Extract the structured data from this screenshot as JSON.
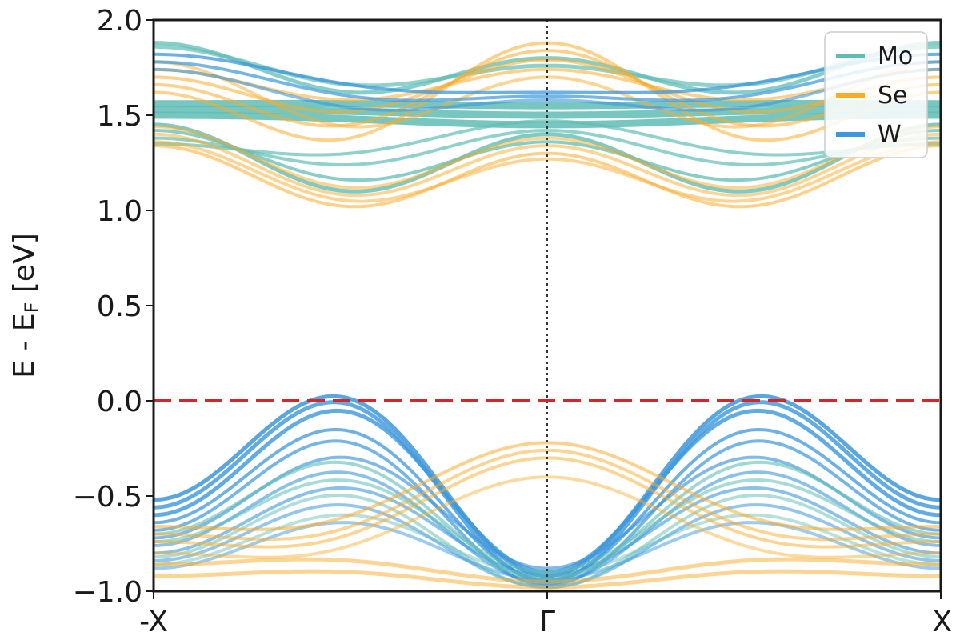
{
  "chart_data": {
    "type": "line",
    "title": "",
    "xlabel": "",
    "ylabel_parts": {
      "main": "E - E",
      "sub": "F",
      "unit": " [eV]"
    },
    "ylim": [
      -1.0,
      2.0
    ],
    "yticks": [
      -1.0,
      -0.5,
      0.0,
      0.5,
      1.0,
      1.5,
      2.0
    ],
    "ytick_labels": [
      "−1.0",
      "−0.5",
      "0.0",
      "0.5",
      "1.0",
      "1.5",
      "2.0"
    ],
    "xlim": [
      -1,
      1
    ],
    "xticks": [
      -1,
      0,
      1
    ],
    "xtick_labels": [
      "-X",
      "Γ",
      "X"
    ],
    "fermi_level": 0.0,
    "gamma_line_x": 0,
    "legend": {
      "placement": "top-right",
      "entries": [
        {
          "name": "Mo",
          "color": "#5fbdb5"
        },
        {
          "name": "Se",
          "color": "#f9ac2b"
        },
        {
          "name": "W",
          "color": "#3c97dc"
        }
      ]
    },
    "colors": {
      "fermi": "#d62728",
      "gamma_line": "#333333",
      "frame": "#1a1a1a"
    },
    "bands": {
      "conduction": [
        {
          "series": "Mo",
          "edge": 1.5,
          "gamma": 1.45,
          "valley": 1.48,
          "width": 9,
          "alpha": 0.85
        },
        {
          "series": "Mo",
          "edge": 1.53,
          "gamma": 1.5,
          "valley": 1.52,
          "width": 9,
          "alpha": 0.85
        },
        {
          "series": "Mo",
          "edge": 1.56,
          "gamma": 1.55,
          "valley": 1.56,
          "width": 9,
          "alpha": 0.85
        },
        {
          "series": "Mo",
          "edge": 1.45,
          "gamma": 1.4,
          "valley": 1.1,
          "width": 5,
          "alpha": 0.8
        },
        {
          "series": "Mo",
          "edge": 1.42,
          "gamma": 1.36,
          "valley": 1.16,
          "width": 4,
          "alpha": 0.75
        },
        {
          "series": "Mo",
          "edge": 1.38,
          "gamma": 1.42,
          "valley": 1.24,
          "width": 4,
          "alpha": 0.7
        },
        {
          "series": "Mo",
          "edge": 1.35,
          "gamma": 1.47,
          "valley": 1.3,
          "width": 4,
          "alpha": 0.7
        },
        {
          "series": "Mo",
          "edge": 1.88,
          "gamma": 1.8,
          "valley": 1.62,
          "width": 5,
          "alpha": 0.75
        },
        {
          "series": "Mo",
          "edge": 1.86,
          "gamma": 1.76,
          "valley": 1.66,
          "width": 5,
          "alpha": 0.7
        },
        {
          "series": "Se",
          "edge": 1.34,
          "gamma": 1.3,
          "valley": 1.02,
          "width": 4,
          "alpha": 0.55
        },
        {
          "series": "Se",
          "edge": 1.36,
          "gamma": 1.27,
          "valley": 1.05,
          "width": 4,
          "alpha": 0.5
        },
        {
          "series": "Se",
          "edge": 1.4,
          "gamma": 1.34,
          "valley": 1.08,
          "width": 4,
          "alpha": 0.5
        },
        {
          "series": "Se",
          "edge": 1.44,
          "gamma": 1.38,
          "valley": 1.12,
          "width": 4,
          "alpha": 0.5
        },
        {
          "series": "Se",
          "edge": 1.62,
          "gamma": 1.88,
          "valley": 1.38,
          "width": 4,
          "alpha": 0.55
        },
        {
          "series": "Se",
          "edge": 1.66,
          "gamma": 1.84,
          "valley": 1.45,
          "width": 4,
          "alpha": 0.55
        },
        {
          "series": "Se",
          "edge": 1.7,
          "gamma": 1.79,
          "valley": 1.52,
          "width": 4,
          "alpha": 0.55
        },
        {
          "series": "Se",
          "edge": 1.74,
          "gamma": 1.74,
          "valley": 1.58,
          "width": 4,
          "alpha": 0.55
        },
        {
          "series": "Se",
          "edge": 1.78,
          "gamma": 1.7,
          "valley": 1.44,
          "width": 4,
          "alpha": 0.5
        },
        {
          "series": "W",
          "edge": 1.82,
          "gamma": 1.62,
          "valley": 1.66,
          "width": 4,
          "alpha": 0.75
        },
        {
          "series": "W",
          "edge": 1.78,
          "gamma": 1.6,
          "valley": 1.6,
          "width": 4,
          "alpha": 0.7
        },
        {
          "series": "W",
          "edge": 1.74,
          "gamma": 1.58,
          "valley": 1.54,
          "width": 4,
          "alpha": 0.6
        }
      ],
      "valence": [
        {
          "series": "W",
          "edge": -0.52,
          "gamma": -0.92,
          "peak": 0.01,
          "width": 5,
          "alpha": 0.85
        },
        {
          "series": "W",
          "edge": -0.56,
          "gamma": -0.95,
          "peak": -0.02,
          "width": 5,
          "alpha": 0.8
        },
        {
          "series": "W",
          "edge": -0.6,
          "gamma": -0.9,
          "peak": -0.06,
          "width": 5,
          "alpha": 0.8
        },
        {
          "series": "W",
          "edge": -0.64,
          "gamma": -0.94,
          "peak": -0.16,
          "width": 4,
          "alpha": 0.75
        },
        {
          "series": "W",
          "edge": -0.68,
          "gamma": -0.97,
          "peak": -0.22,
          "width": 4,
          "alpha": 0.7
        },
        {
          "series": "W",
          "edge": -0.72,
          "gamma": -0.88,
          "peak": -0.3,
          "width": 4,
          "alpha": 0.65
        },
        {
          "series": "W",
          "edge": -0.76,
          "gamma": -0.96,
          "peak": -0.38,
          "width": 4,
          "alpha": 0.6
        },
        {
          "series": "W",
          "edge": -0.8,
          "gamma": -0.92,
          "peak": -0.46,
          "width": 4,
          "alpha": 0.6
        },
        {
          "series": "W",
          "edge": -0.84,
          "gamma": -0.98,
          "peak": -0.55,
          "width": 4,
          "alpha": 0.55
        },
        {
          "series": "W",
          "edge": -0.88,
          "gamma": -0.94,
          "peak": -0.64,
          "width": 4,
          "alpha": 0.5
        },
        {
          "series": "Mo",
          "edge": -0.7,
          "gamma": -0.94,
          "peak": -0.33,
          "width": 4,
          "alpha": 0.6
        },
        {
          "series": "Mo",
          "edge": -0.74,
          "gamma": -0.9,
          "peak": -0.42,
          "width": 4,
          "alpha": 0.55
        },
        {
          "series": "Mo",
          "edge": -0.82,
          "gamma": -0.98,
          "peak": -0.5,
          "width": 4,
          "alpha": 0.5
        },
        {
          "series": "Mo",
          "edge": -0.86,
          "gamma": -0.92,
          "peak": -0.6,
          "width": 4,
          "alpha": 0.45
        },
        {
          "series": "Se",
          "edge": -0.66,
          "gamma": -0.22,
          "peak": -0.6,
          "width": 4,
          "alpha": 0.55
        },
        {
          "series": "Se",
          "edge": -0.7,
          "gamma": -0.26,
          "peak": -0.66,
          "width": 4,
          "alpha": 0.5
        },
        {
          "series": "Se",
          "edge": -0.74,
          "gamma": -0.3,
          "peak": -0.7,
          "width": 4,
          "alpha": 0.5
        },
        {
          "series": "Se",
          "edge": -0.8,
          "gamma": -0.4,
          "peak": -0.76,
          "width": 4,
          "alpha": 0.45
        },
        {
          "series": "Se",
          "edge": -0.86,
          "gamma": -0.95,
          "peak": -0.84,
          "width": 5,
          "alpha": 0.5
        },
        {
          "series": "Se",
          "edge": -0.92,
          "gamma": -0.98,
          "peak": -0.9,
          "width": 5,
          "alpha": 0.5
        }
      ]
    }
  }
}
